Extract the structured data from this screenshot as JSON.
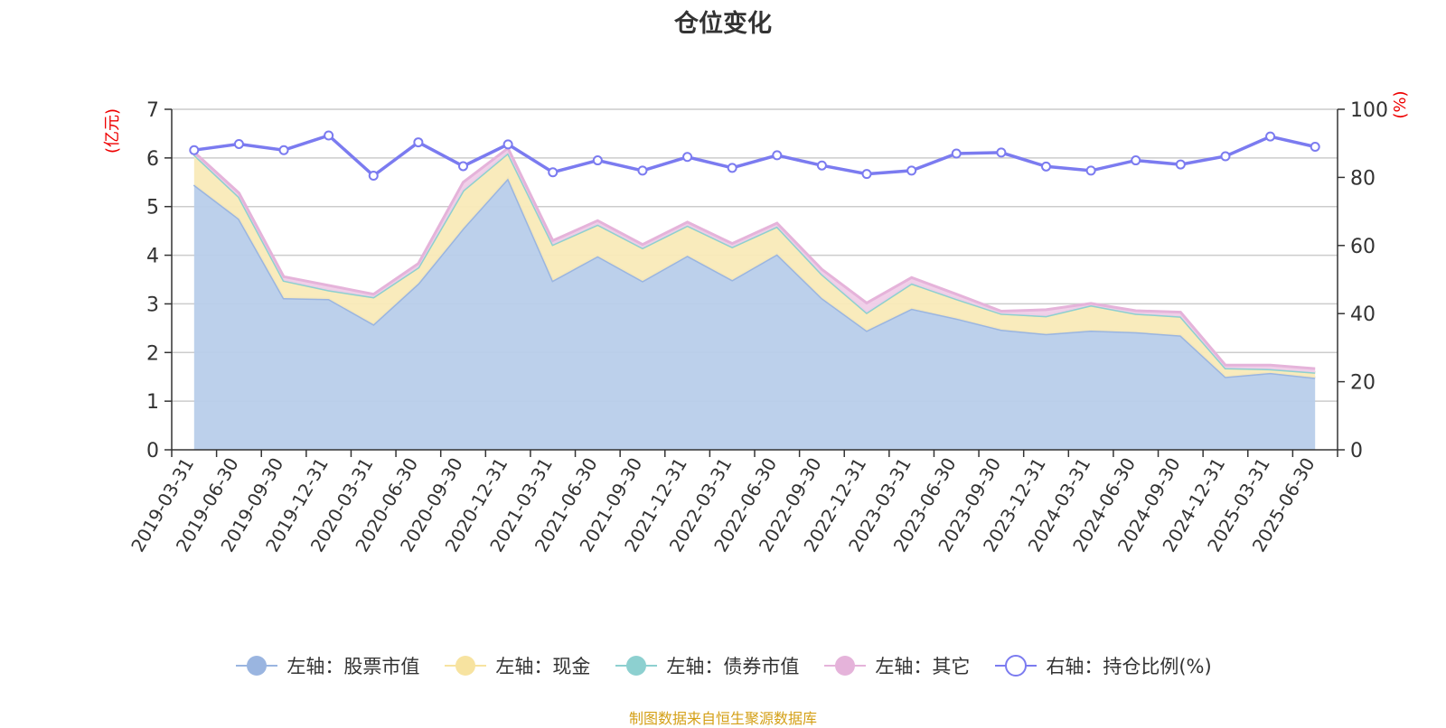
{
  "chart_data": {
    "type": "area",
    "title": "仓位变化",
    "ylabel_left": "(亿元)",
    "ylabel_right": "(%)",
    "left_ylim": [
      0,
      7
    ],
    "left_yticks": [
      0,
      1,
      2,
      3,
      4,
      5,
      6,
      7
    ],
    "right_ylim": [
      0,
      100
    ],
    "right_yticks": [
      0,
      20,
      40,
      60,
      80,
      100
    ],
    "grid": true,
    "legend_position": "bottom",
    "categories": [
      "2019-03-31",
      "2019-06-30",
      "2019-09-30",
      "2019-12-31",
      "2020-03-31",
      "2020-06-30",
      "2020-09-30",
      "2020-12-31",
      "2021-03-31",
      "2021-06-30",
      "2021-09-30",
      "2021-12-31",
      "2022-03-31",
      "2022-06-30",
      "2022-09-30",
      "2022-12-31",
      "2023-03-31",
      "2023-06-30",
      "2023-09-30",
      "2023-12-31",
      "2024-03-31",
      "2024-06-30",
      "2024-09-30",
      "2024-12-31",
      "2025-03-31",
      "2025-06-30"
    ],
    "series": [
      {
        "name": "左轴：股票市值",
        "axis": "left",
        "stack": true,
        "color": "#9ab5e0",
        "fill": "#b8cdea",
        "values": [
          5.45,
          4.75,
          3.12,
          3.1,
          2.58,
          3.42,
          4.55,
          5.58,
          3.48,
          3.98,
          3.47,
          3.99,
          3.49,
          4.02,
          3.12,
          2.45,
          2.9,
          2.7,
          2.47,
          2.38,
          2.45,
          2.42,
          2.35,
          1.5,
          1.58,
          1.48
        ]
      },
      {
        "name": "左轴：现金",
        "axis": "left",
        "stack": true,
        "color": "#f7e3a0",
        "fill": "#f9eab8",
        "values": [
          0.62,
          0.45,
          0.36,
          0.18,
          0.56,
          0.33,
          0.78,
          0.52,
          0.74,
          0.65,
          0.68,
          0.62,
          0.68,
          0.57,
          0.49,
          0.37,
          0.52,
          0.4,
          0.33,
          0.37,
          0.52,
          0.38,
          0.39,
          0.18,
          0.08,
          0.11
        ]
      },
      {
        "name": "左轴：债券市值",
        "axis": "left",
        "stack": true,
        "color": "#8dd0d0",
        "fill": "#aee0e0",
        "values": [
          0,
          0,
          0,
          0,
          0,
          0,
          0,
          0,
          0,
          0,
          0,
          0,
          0,
          0,
          0,
          0,
          0,
          0,
          0,
          0,
          0,
          0,
          0,
          0,
          0,
          0
        ]
      },
      {
        "name": "左轴：其它",
        "axis": "left",
        "stack": true,
        "color": "#e5b3da",
        "fill": "#f0cde8",
        "values": [
          0.05,
          0.08,
          0.08,
          0.1,
          0.06,
          0.08,
          0.17,
          0.1,
          0.08,
          0.08,
          0.07,
          0.07,
          0.07,
          0.07,
          0.1,
          0.2,
          0.12,
          0.1,
          0.05,
          0.13,
          0.04,
          0.06,
          0.09,
          0.06,
          0.08,
          0.08
        ]
      },
      {
        "name": "右轴：持仓比例(%)",
        "axis": "right",
        "type": "line",
        "color": "#7b7bf0",
        "values": [
          88,
          89.8,
          88,
          92.3,
          80.5,
          90.3,
          83.3,
          89.7,
          81.5,
          85,
          82,
          86,
          82.8,
          86.5,
          83.5,
          81,
          82,
          87,
          87.3,
          83.2,
          82,
          85,
          83.8,
          86.2,
          92,
          89
        ]
      }
    ]
  },
  "footer": "制图数据来自恒生聚源数据库"
}
